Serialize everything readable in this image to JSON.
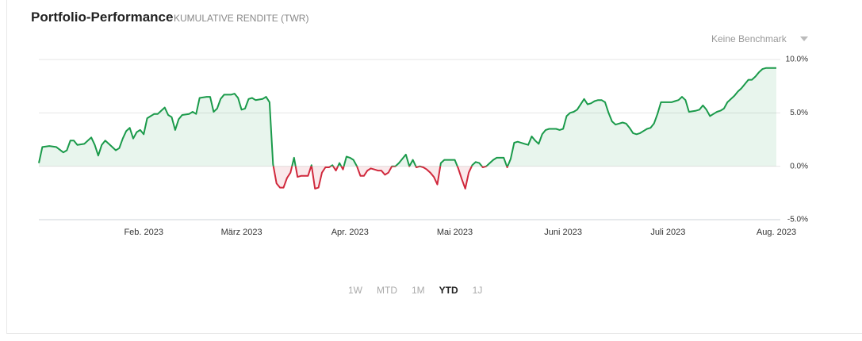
{
  "title": "Portfolio-Performance",
  "subtitle": "KUMULATIVE RENDITE (TWR)",
  "benchmark_selector": "Keine Benchmark",
  "range_buttons": [
    "1W",
    "MTD",
    "1M",
    "YTD",
    "1J"
  ],
  "active_range": "YTD",
  "chart_data": {
    "type": "line",
    "color": "#1a9a4a",
    "negative_color": "#d0283c",
    "grid": true,
    "xlim": [
      2,
      213
    ],
    "xticks": [
      {
        "value": 32,
        "label": "Feb. 2023"
      },
      {
        "value": 60,
        "label": "März 2023"
      },
      {
        "value": 91,
        "label": "Apr. 2023"
      },
      {
        "value": 121,
        "label": "Mai 2023"
      },
      {
        "value": 152,
        "label": "Juni 2023"
      },
      {
        "value": 182,
        "label": "Juli 2023"
      },
      {
        "value": 213,
        "label": "Aug. 2023"
      }
    ],
    "ylim": [
      -5,
      10
    ],
    "yticks": [
      {
        "value": -5,
        "label": "-5.0%"
      },
      {
        "value": 0,
        "label": "0.0%"
      },
      {
        "value": 5,
        "label": "5.0%"
      },
      {
        "value": 10,
        "label": "10.0%"
      }
    ],
    "x": [
      2,
      3,
      5,
      7,
      9,
      10,
      11,
      12,
      13,
      15,
      17,
      18,
      19,
      20,
      21,
      23,
      24,
      25,
      26,
      27,
      28,
      29,
      30,
      31,
      32,
      33,
      34,
      35,
      36,
      37,
      38,
      39,
      40,
      41,
      42,
      43,
      45,
      46,
      47,
      48,
      50,
      51,
      52,
      53,
      54,
      55,
      57,
      58,
      59,
      60,
      61,
      62,
      63,
      64,
      66,
      67,
      68,
      69,
      70,
      71,
      72,
      73,
      74,
      75,
      76,
      77,
      78,
      79,
      80,
      81,
      82,
      83,
      84,
      85,
      86,
      87,
      88,
      89,
      90,
      91,
      92,
      93,
      94,
      95,
      96,
      97,
      98,
      99,
      100,
      101,
      102,
      103,
      104,
      105,
      106,
      107,
      108,
      109,
      110,
      111,
      112,
      113,
      114,
      115,
      116,
      117,
      118,
      119,
      120,
      121,
      122,
      123,
      124,
      125,
      126,
      127,
      128,
      129,
      130,
      131,
      132,
      133,
      134,
      135,
      136,
      137,
      138,
      139,
      141,
      142,
      143,
      144,
      145,
      146,
      147,
      148,
      150,
      151,
      152,
      153,
      154,
      155,
      156,
      157,
      158,
      159,
      160,
      161,
      162,
      163,
      164,
      165,
      166,
      167,
      168,
      169,
      170,
      171,
      172,
      173,
      174,
      175,
      176,
      177,
      178,
      179,
      180,
      181,
      183,
      184,
      185,
      186,
      187,
      188,
      190,
      191,
      192,
      193,
      194,
      195,
      196,
      197,
      198,
      199,
      200,
      201,
      202,
      203,
      204,
      205,
      206,
      207,
      208,
      209,
      210,
      213
    ],
    "values": [
      0.3,
      1.8,
      1.9,
      1.8,
      1.3,
      1.5,
      2.4,
      2.4,
      2.0,
      2.1,
      2.7,
      2.0,
      1.0,
      2.0,
      2.4,
      1.8,
      1.5,
      1.7,
      2.6,
      3.3,
      3.6,
      2.6,
      3.2,
      3.4,
      3.0,
      4.5,
      4.7,
      4.9,
      4.9,
      5.2,
      5.5,
      4.8,
      4.6,
      3.4,
      4.4,
      4.8,
      4.9,
      5.1,
      4.9,
      6.4,
      6.5,
      6.5,
      5.1,
      5.4,
      6.3,
      6.7,
      6.7,
      6.8,
      6.4,
      5.3,
      5.4,
      6.3,
      6.4,
      6.2,
      6.3,
      6.5,
      6.0,
      0.2,
      -1.6,
      -2.0,
      -2.0,
      -1.1,
      -0.6,
      0.8,
      -1.0,
      -0.9,
      -0.9,
      -0.9,
      0.1,
      -2.1,
      -2.0,
      -0.6,
      -0.1,
      -0.1,
      0.1,
      -0.4,
      0.3,
      -0.3,
      0.9,
      0.8,
      0.6,
      0.0,
      -0.9,
      -0.9,
      -0.4,
      -0.2,
      -0.3,
      -0.4,
      -0.4,
      -0.8,
      -0.6,
      0.0,
      0.0,
      0.3,
      0.7,
      1.1,
      0.0,
      0.6,
      -0.1,
      0.0,
      -0.1,
      -0.3,
      -0.6,
      -1.0,
      -1.7,
      0.3,
      0.6,
      0.6,
      0.6,
      0.6,
      -0.2,
      -1.2,
      -2.1,
      -0.6,
      0.1,
      0.4,
      0.3,
      -0.1,
      0.0,
      0.3,
      0.6,
      0.8,
      0.8,
      0.8,
      -0.1,
      0.7,
      2.2,
      2.3,
      2.1,
      2.0,
      2.8,
      2.4,
      2.1,
      3.0,
      3.4,
      3.5,
      3.5,
      3.4,
      3.5,
      4.7,
      5.0,
      5.1,
      5.3,
      5.8,
      6.3,
      5.8,
      5.9,
      6.1,
      6.2,
      6.2,
      6.0,
      5.0,
      4.2,
      3.9,
      4.0,
      4.1,
      4.0,
      3.6,
      3.1,
      3.0,
      3.1,
      3.3,
      3.5,
      3.6,
      4.0,
      4.9,
      6.0,
      6.0,
      6.0,
      6.1,
      6.2,
      6.5,
      6.2,
      5.1,
      5.2,
      5.3,
      5.7,
      5.3,
      4.7,
      4.9,
      5.1,
      5.2,
      5.4,
      6.0,
      6.3,
      6.6,
      7.0,
      7.3,
      7.7,
      8.1,
      8.1,
      8.4,
      8.8,
      9.1,
      9.2,
      9.2
    ]
  }
}
